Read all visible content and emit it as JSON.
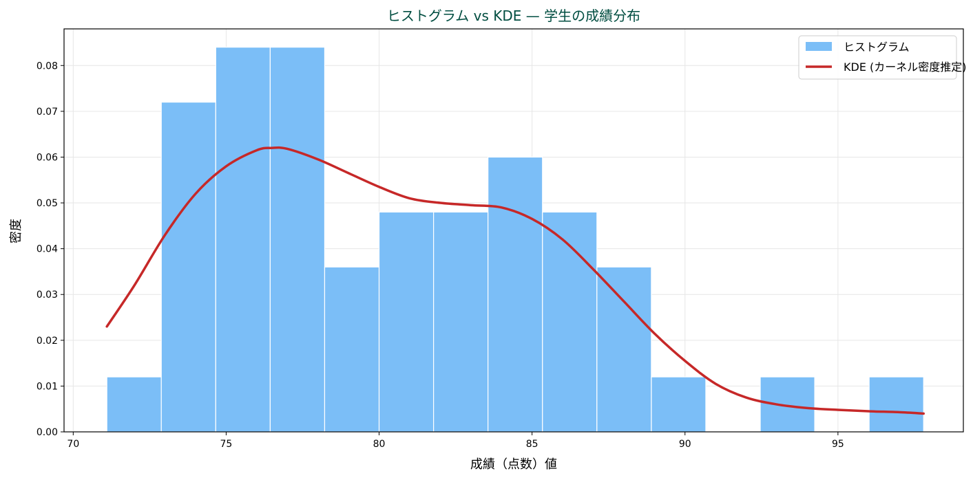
{
  "chart_data": {
    "type": "bar",
    "title": "ヒストグラム vs KDE — 学生の成績分布",
    "xlabel": "成績（点数）値",
    "ylabel": "密度",
    "xlim": [
      69.7,
      99.1
    ],
    "ylim": [
      0,
      0.088
    ],
    "xticks": [
      70,
      75,
      80,
      85,
      90,
      95
    ],
    "yticks": [
      0.0,
      0.01,
      0.02,
      0.03,
      0.04,
      0.05,
      0.06,
      0.07,
      0.08
    ],
    "grid": true,
    "legend_position": "top-right",
    "histogram": {
      "name": "ヒストグラム",
      "bin_edges": [
        71.1,
        72.88,
        74.66,
        76.44,
        78.22,
        80.0,
        81.78,
        83.56,
        85.34,
        87.12,
        88.9,
        90.68,
        92.46,
        94.24,
        96.02,
        97.8
      ],
      "density": [
        0.012,
        0.072,
        0.084,
        0.084,
        0.036,
        0.048,
        0.048,
        0.06,
        0.048,
        0.036,
        0.012,
        0.0,
        0.012,
        0.0,
        0.012
      ]
    },
    "kde": {
      "name": "KDE (カーネル密度推定)",
      "x": [
        71.1,
        72.0,
        73.0,
        74.0,
        75.0,
        76.0,
        76.5,
        77.0,
        78.0,
        79.0,
        80.0,
        81.0,
        82.0,
        83.0,
        84.0,
        85.0,
        86.0,
        87.0,
        88.0,
        89.0,
        90.0,
        91.0,
        92.0,
        93.0,
        94.0,
        95.0,
        96.0,
        97.0,
        97.8
      ],
      "y": [
        0.023,
        0.032,
        0.043,
        0.052,
        0.058,
        0.0615,
        0.062,
        0.0618,
        0.0595,
        0.0565,
        0.0535,
        0.051,
        0.05,
        0.0495,
        0.049,
        0.0465,
        0.042,
        0.0355,
        0.0285,
        0.0215,
        0.0155,
        0.0105,
        0.0075,
        0.006,
        0.0052,
        0.0048,
        0.0045,
        0.0043,
        0.004
      ]
    },
    "colors": {
      "bars": "#7bbef7",
      "bar_edge": "#ffffff",
      "kde": "#c62828",
      "title": "#004d40"
    }
  }
}
